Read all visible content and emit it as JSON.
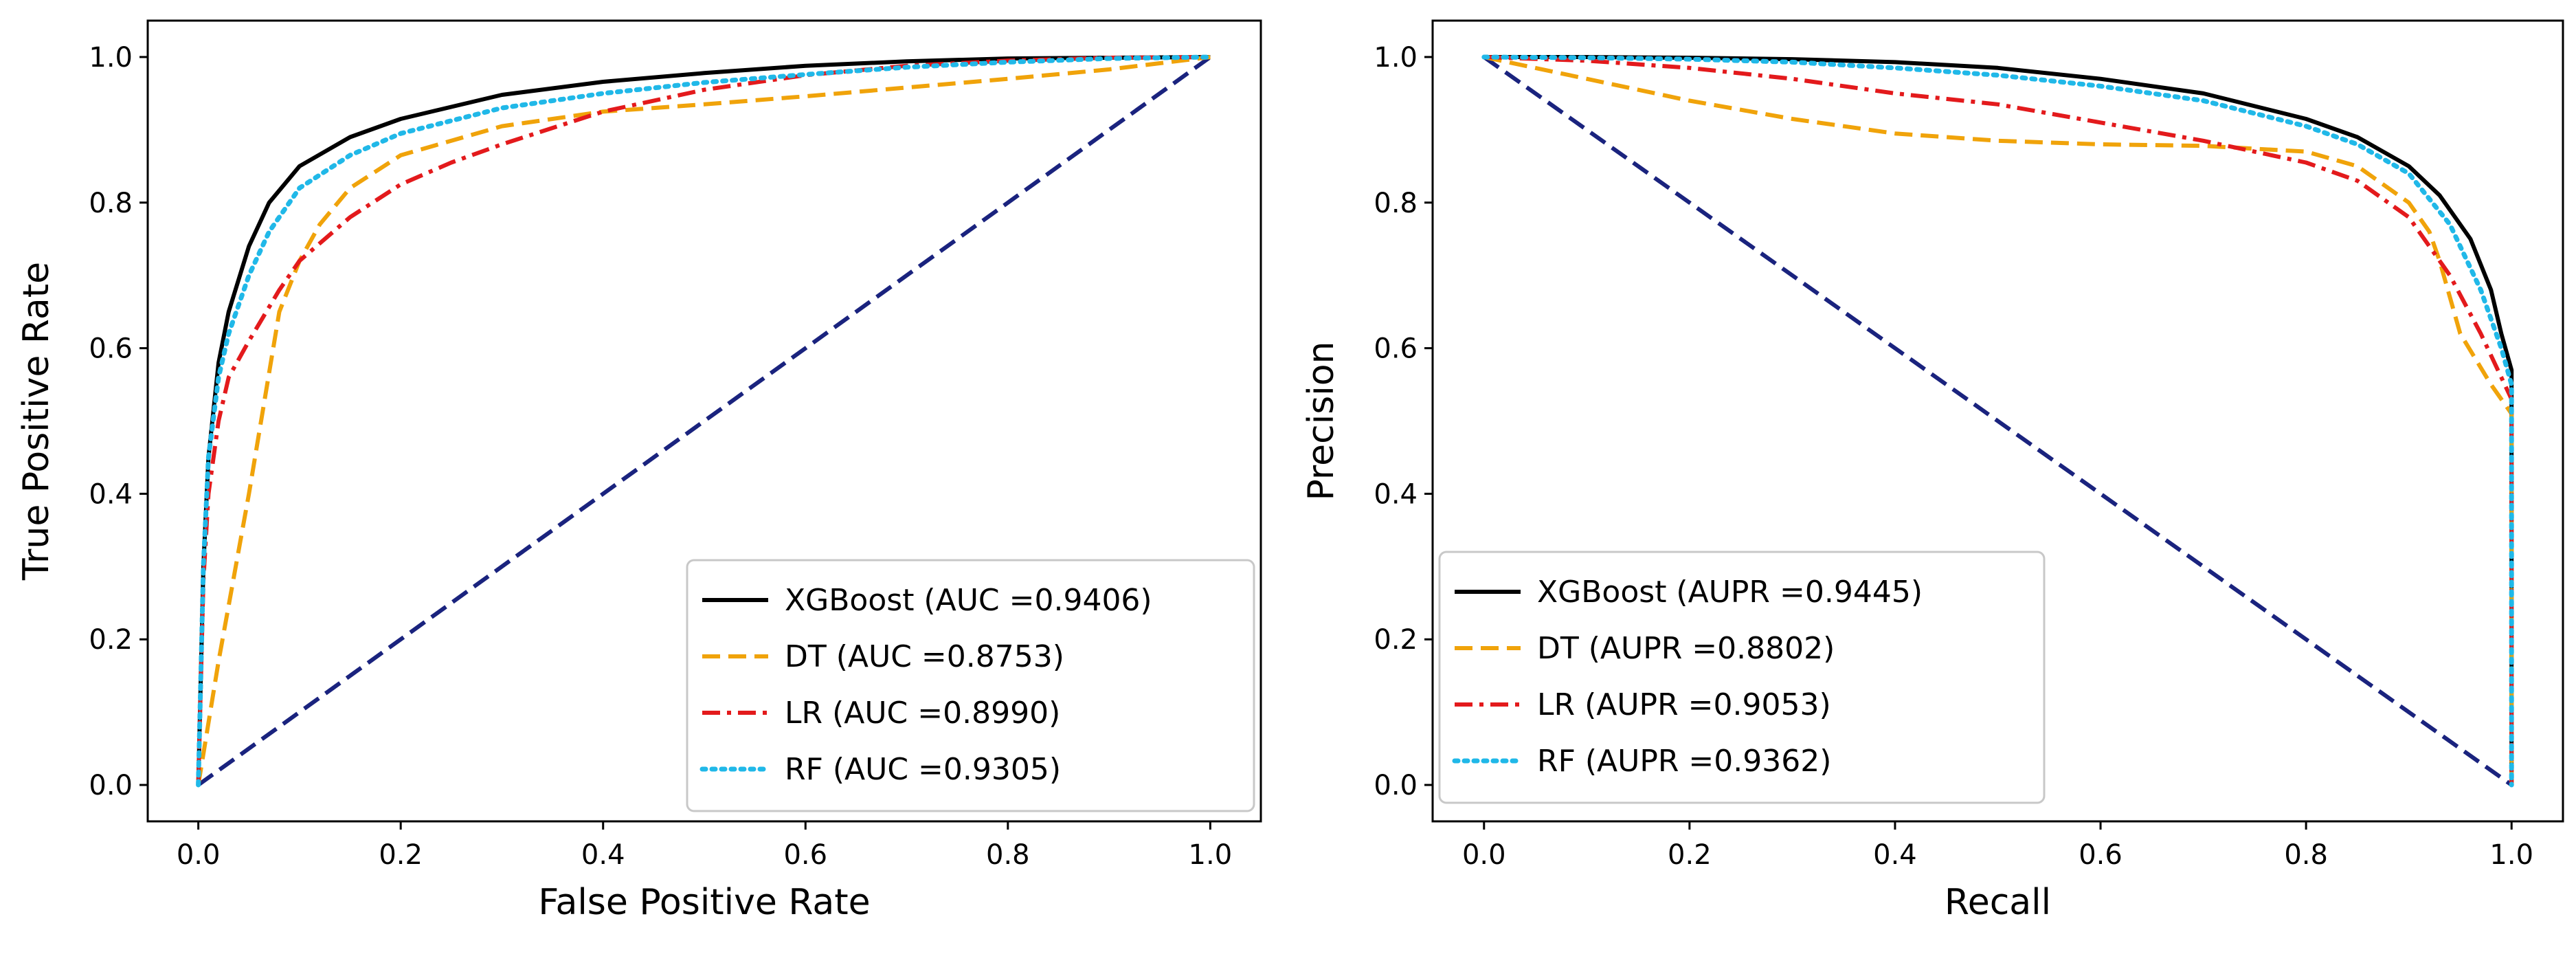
{
  "chart_data": [
    {
      "type": "line",
      "id": "roc",
      "xlabel": "False Positive Rate",
      "ylabel": "True Positive Rate",
      "xlim": [
        -0.05,
        1.05
      ],
      "ylim": [
        -0.05,
        1.05
      ],
      "xticks": [
        "0.0",
        "0.2",
        "0.4",
        "0.6",
        "0.8",
        "1.0"
      ],
      "yticks": [
        "0.0",
        "0.2",
        "0.4",
        "0.6",
        "0.8",
        "1.0"
      ],
      "legend_position": "lower-right",
      "series": [
        {
          "name": "XGBoost",
          "legend_label": "XGBoost (AUC =0.9406)",
          "color": "#000000",
          "style": "solid",
          "x": [
            0,
            0.005,
            0.01,
            0.02,
            0.03,
            0.05,
            0.07,
            0.1,
            0.15,
            0.2,
            0.3,
            0.4,
            0.5,
            0.6,
            0.7,
            0.8,
            0.9,
            1.0
          ],
          "y": [
            0,
            0.3,
            0.45,
            0.58,
            0.65,
            0.74,
            0.8,
            0.85,
            0.89,
            0.915,
            0.948,
            0.966,
            0.978,
            0.988,
            0.994,
            0.998,
            0.999,
            1.0
          ]
        },
        {
          "name": "DT",
          "legend_label": "DT (AUC =0.8753)",
          "color": "#f0a30a",
          "style": "dashed",
          "x": [
            0,
            0.02,
            0.05,
            0.08,
            0.1,
            0.12,
            0.15,
            0.2,
            0.3,
            0.4,
            0.5,
            0.6,
            0.7,
            0.8,
            0.9,
            1.0
          ],
          "y": [
            0,
            0.17,
            0.4,
            0.65,
            0.72,
            0.77,
            0.82,
            0.865,
            0.905,
            0.925,
            0.935,
            0.946,
            0.958,
            0.97,
            0.983,
            1.0
          ]
        },
        {
          "name": "LR",
          "legend_label": "LR (AUC =0.8990)",
          "color": "#e31a1c",
          "style": "dashdot",
          "x": [
            0,
            0.005,
            0.01,
            0.02,
            0.03,
            0.05,
            0.08,
            0.1,
            0.15,
            0.2,
            0.25,
            0.3,
            0.4,
            0.5,
            0.6,
            0.7,
            0.8,
            0.9,
            1.0
          ],
          "y": [
            0,
            0.28,
            0.4,
            0.5,
            0.56,
            0.61,
            0.68,
            0.72,
            0.78,
            0.825,
            0.855,
            0.88,
            0.925,
            0.955,
            0.975,
            0.988,
            0.995,
            0.999,
            1.0
          ]
        },
        {
          "name": "RF",
          "legend_label": "RF (AUC =0.9305)",
          "color": "#20b8e8",
          "style": "dotted",
          "x": [
            0,
            0.005,
            0.01,
            0.02,
            0.03,
            0.05,
            0.07,
            0.1,
            0.15,
            0.2,
            0.3,
            0.4,
            0.5,
            0.6,
            0.7,
            0.8,
            0.9,
            1.0
          ],
          "y": [
            0,
            0.3,
            0.45,
            0.56,
            0.62,
            0.7,
            0.76,
            0.82,
            0.865,
            0.895,
            0.93,
            0.95,
            0.965,
            0.976,
            0.986,
            0.993,
            0.998,
            1.0
          ]
        },
        {
          "name": "Baseline",
          "legend_label": "",
          "color": "#1a237e",
          "style": "dashed",
          "x": [
            0,
            1
          ],
          "y": [
            0,
            1
          ]
        }
      ]
    },
    {
      "type": "line",
      "id": "pr",
      "xlabel": "Recall",
      "ylabel": "Precision",
      "xlim": [
        -0.05,
        1.05
      ],
      "ylim": [
        -0.05,
        1.05
      ],
      "xticks": [
        "0.0",
        "0.2",
        "0.4",
        "0.6",
        "0.8",
        "1.0"
      ],
      "yticks": [
        "0.0",
        "0.2",
        "0.4",
        "0.6",
        "0.8",
        "1.0"
      ],
      "legend_position": "lower-left",
      "series": [
        {
          "name": "XGBoost",
          "legend_label": "XGBoost (AUPR =0.9445)",
          "color": "#000000",
          "style": "solid",
          "x": [
            0,
            0.1,
            0.2,
            0.3,
            0.4,
            0.5,
            0.6,
            0.7,
            0.8,
            0.85,
            0.9,
            0.93,
            0.96,
            0.98,
            0.99,
            1.0,
            1.0,
            1.0
          ],
          "y": [
            1.0,
            1.0,
            0.999,
            0.997,
            0.993,
            0.985,
            0.97,
            0.95,
            0.915,
            0.89,
            0.85,
            0.81,
            0.75,
            0.68,
            0.62,
            0.57,
            0.3,
            0.0
          ]
        },
        {
          "name": "DT",
          "legend_label": "DT (AUPR =0.8802)",
          "color": "#f0a30a",
          "style": "dashed",
          "x": [
            0,
            0.1,
            0.2,
            0.3,
            0.4,
            0.5,
            0.6,
            0.7,
            0.8,
            0.85,
            0.9,
            0.92,
            0.93,
            0.95,
            0.98,
            1.0,
            1.0
          ],
          "y": [
            1.0,
            0.97,
            0.94,
            0.915,
            0.895,
            0.885,
            0.88,
            0.878,
            0.87,
            0.85,
            0.8,
            0.76,
            0.72,
            0.62,
            0.55,
            0.51,
            0.0
          ]
        },
        {
          "name": "LR",
          "legend_label": "LR (AUPR =0.9053)",
          "color": "#e31a1c",
          "style": "dashdot",
          "x": [
            0,
            0.1,
            0.2,
            0.3,
            0.4,
            0.5,
            0.6,
            0.7,
            0.8,
            0.85,
            0.9,
            0.94,
            0.97,
            0.99,
            1.0,
            1.0
          ],
          "y": [
            1.0,
            0.995,
            0.985,
            0.97,
            0.95,
            0.935,
            0.91,
            0.885,
            0.855,
            0.83,
            0.78,
            0.7,
            0.62,
            0.56,
            0.53,
            0.0
          ]
        },
        {
          "name": "RF",
          "legend_label": "RF (AUPR =0.9362)",
          "color": "#20b8e8",
          "style": "dotted",
          "x": [
            0,
            0.1,
            0.2,
            0.3,
            0.4,
            0.5,
            0.6,
            0.7,
            0.8,
            0.85,
            0.9,
            0.94,
            0.97,
            0.99,
            1.0,
            1.0
          ],
          "y": [
            1.0,
            0.999,
            0.997,
            0.993,
            0.985,
            0.975,
            0.96,
            0.94,
            0.905,
            0.88,
            0.84,
            0.77,
            0.68,
            0.6,
            0.55,
            0.0
          ]
        },
        {
          "name": "Baseline",
          "legend_label": "",
          "color": "#1a237e",
          "style": "dashed",
          "x": [
            0,
            1
          ],
          "y": [
            1,
            0
          ]
        }
      ]
    }
  ]
}
